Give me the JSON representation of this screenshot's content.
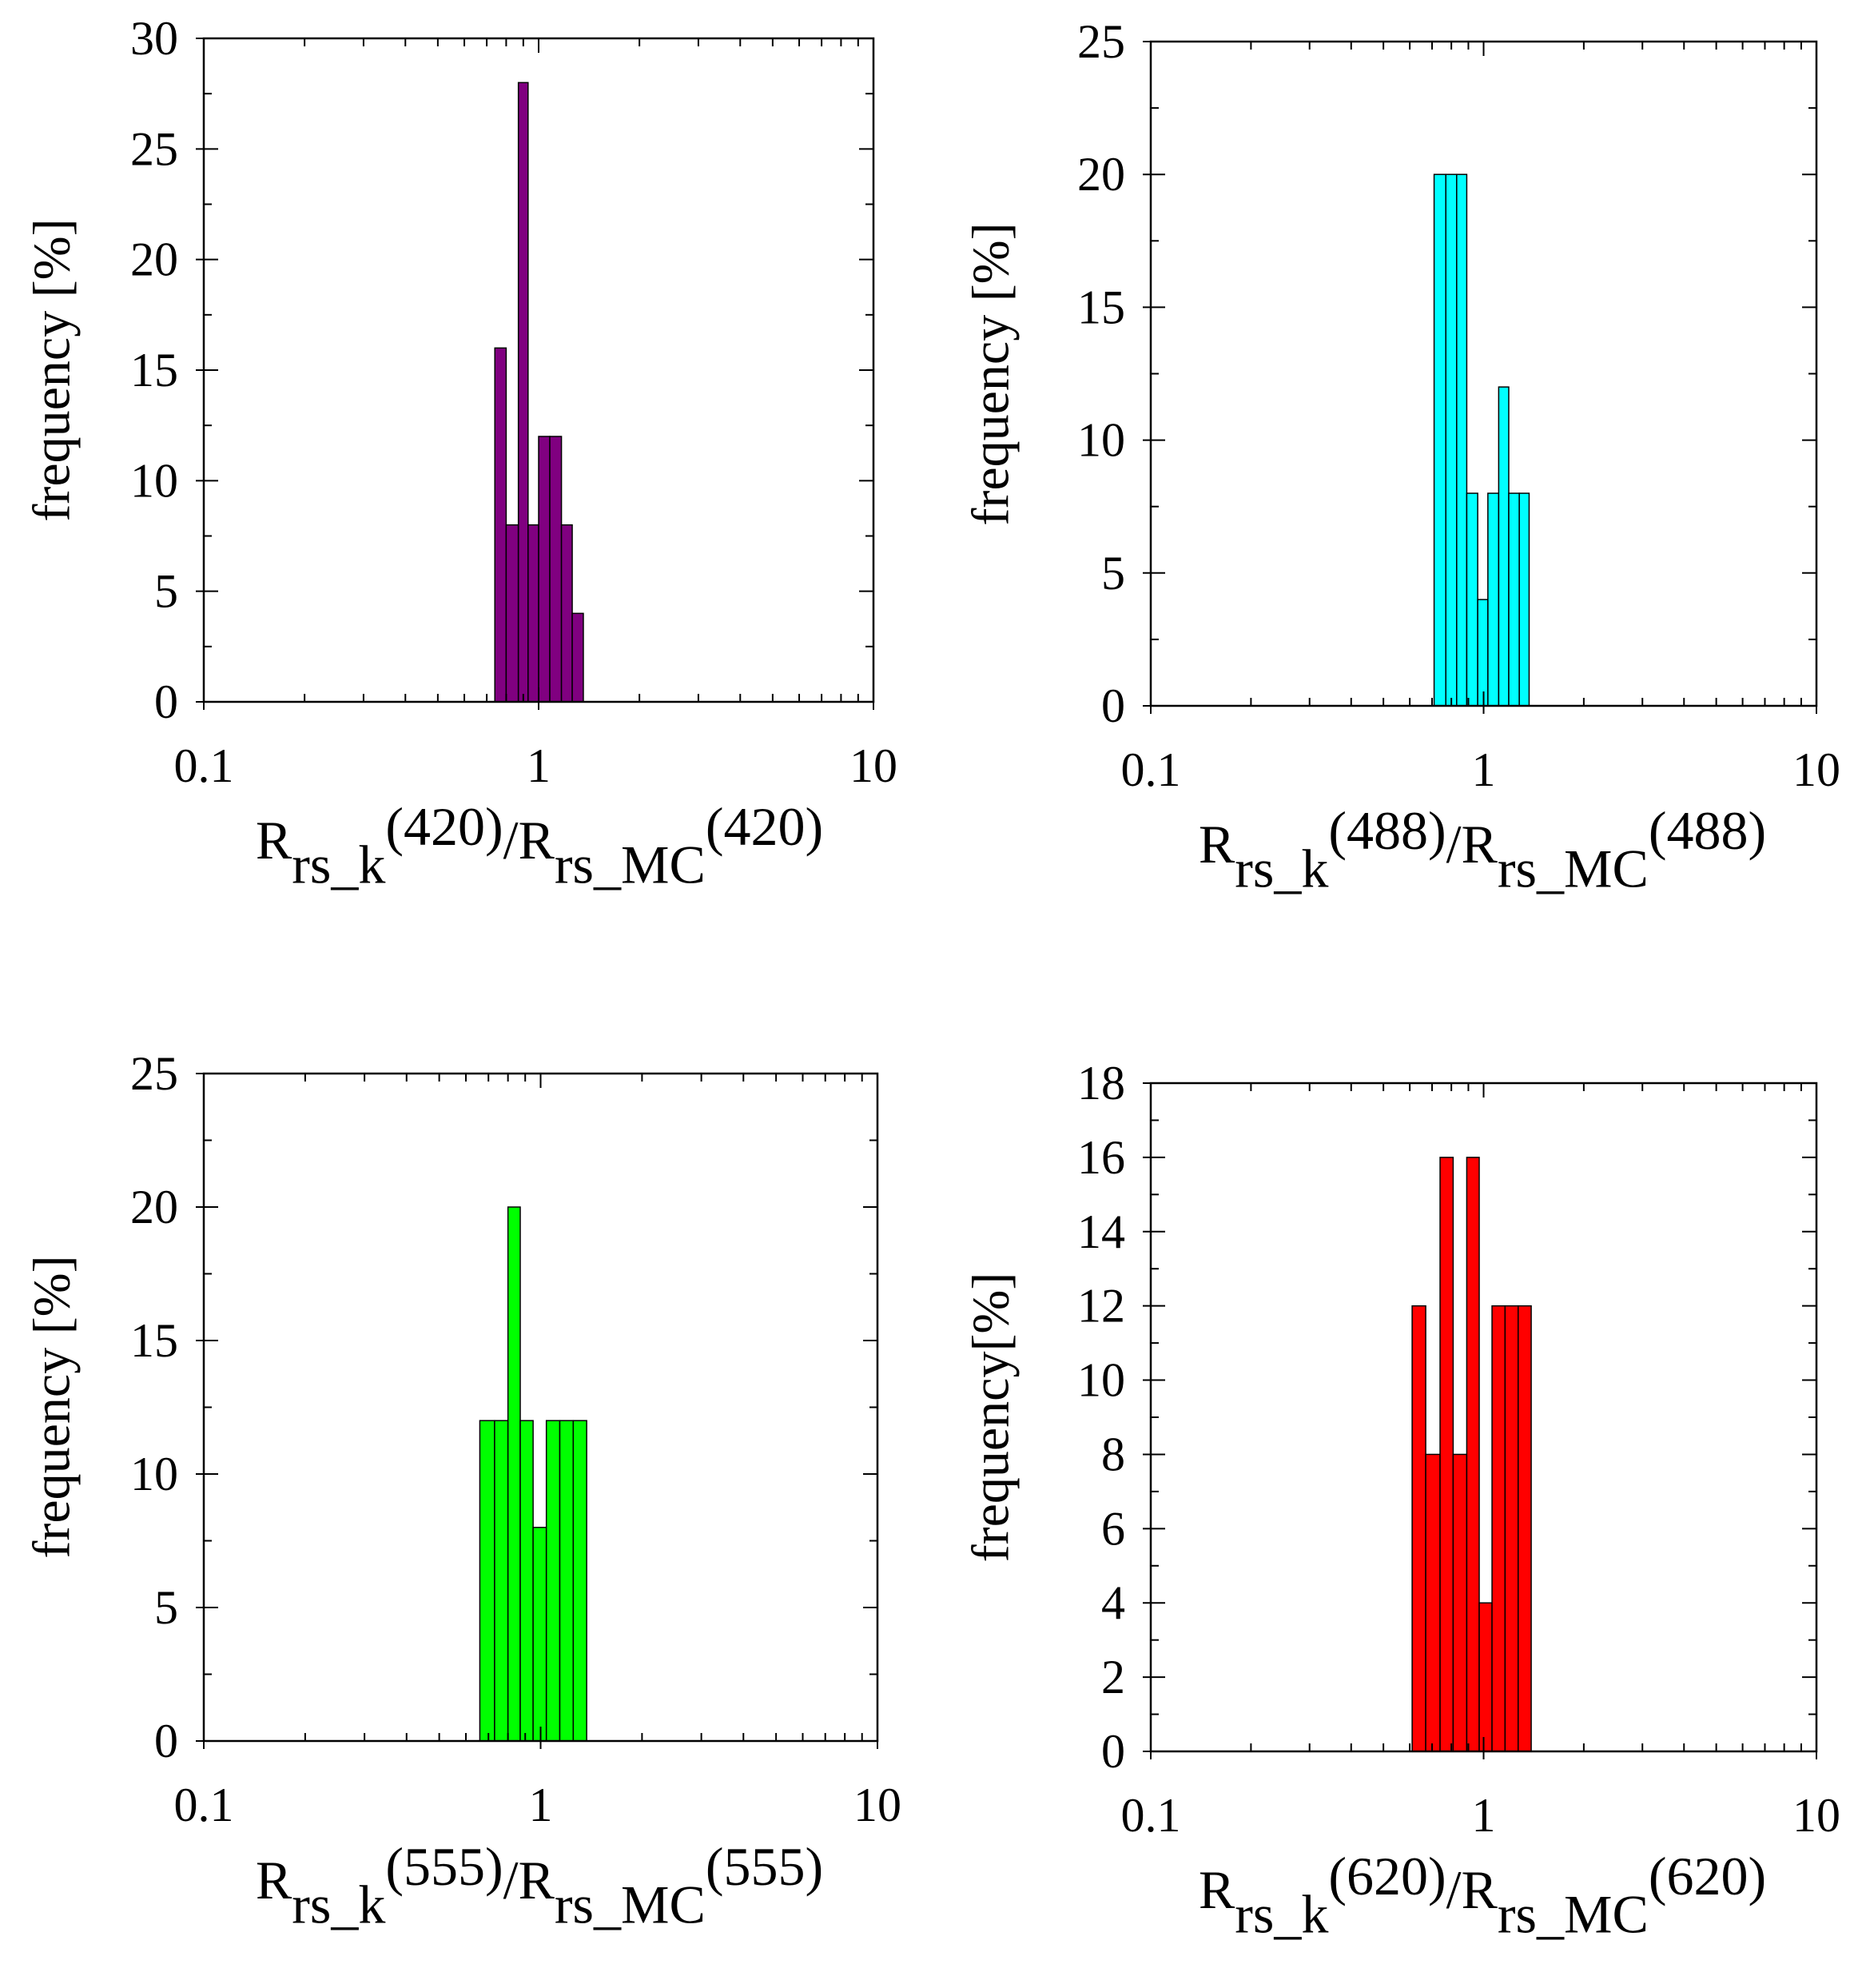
{
  "charts": [
    {
      "xlabel": {
        "prefix": "R",
        "sub1": "rs_k",
        "wl1": "(420)",
        "slash": "/R",
        "sub2": "rs_MC",
        "wl2": "(420)"
      },
      "ylabel": "frequency [%]"
    },
    {
      "xlabel": {
        "prefix": "R",
        "sub1": "rs_k",
        "wl1": "(488)",
        "slash": "/R",
        "sub2": "rs_MC",
        "wl2": "(488)"
      },
      "ylabel": "frequency [%]"
    },
    {
      "xlabel": {
        "prefix": "R",
        "sub1": "rs_k",
        "wl1": "(555)",
        "slash": "/R",
        "sub2": "rs_MC",
        "wl2": "(555)"
      },
      "ylabel": "frequency [%]"
    },
    {
      "xlabel": {
        "prefix": "R",
        "sub1": "rs_k",
        "wl1": "(620)",
        "slash": "/R",
        "sub2": "rs_MC",
        "wl2": "(620)"
      },
      "ylabel": "frequency[%]"
    }
  ],
  "chart_data": [
    {
      "type": "bar",
      "title": "",
      "xlabel": "Rrs_k(420)/Rrs_MC(420)",
      "ylabel": "frequency [%]",
      "xscale": "log",
      "xlim": [
        0.1,
        10
      ],
      "ylim": [
        0,
        30
      ],
      "x_ticks": [
        "0.1",
        "1",
        "10"
      ],
      "y_ticks": [
        "0",
        "5",
        "10",
        "15",
        "20",
        "25",
        "30"
      ],
      "bin_edges": [
        0.74,
        0.8,
        0.87,
        0.93,
        1.0,
        1.08,
        1.17,
        1.26,
        1.36
      ],
      "values": [
        16,
        8,
        28,
        8,
        12,
        12,
        8,
        4
      ],
      "color": "#800080"
    },
    {
      "type": "bar",
      "title": "",
      "xlabel": "Rrs_k(488)/Rrs_MC(488)",
      "ylabel": "frequency [%]",
      "xscale": "log",
      "xlim": [
        0.1,
        10
      ],
      "ylim": [
        0,
        25
      ],
      "x_ticks": [
        "0.1",
        "1",
        "10"
      ],
      "y_ticks": [
        "0",
        "5",
        "10",
        "15",
        "20",
        "25"
      ],
      "bin_edges": [
        0.71,
        0.77,
        0.83,
        0.89,
        0.96,
        1.03,
        1.11,
        1.19,
        1.28,
        1.37
      ],
      "values": [
        20,
        20,
        20,
        8,
        4,
        8,
        12,
        8,
        8
      ],
      "color": "#00ffff"
    },
    {
      "type": "bar",
      "title": "",
      "xlabel": "Rrs_k(555)/Rrs_MC(555)",
      "ylabel": "frequency [%]",
      "xscale": "log",
      "xlim": [
        0.1,
        10
      ],
      "ylim": [
        0,
        25
      ],
      "x_ticks": [
        "0.1",
        "1",
        "10"
      ],
      "y_ticks": [
        "0",
        "5",
        "10",
        "15",
        "20",
        "25"
      ],
      "bin_edges": [
        0.66,
        0.73,
        0.8,
        0.87,
        0.95,
        1.04,
        1.14,
        1.25,
        1.37
      ],
      "values": [
        12,
        12,
        20,
        12,
        8,
        12,
        12,
        12
      ],
      "color": "#00ff00"
    },
    {
      "type": "bar",
      "title": "",
      "xlabel": "Rrs_k(620)/Rrs_MC(620)",
      "ylabel": "frequency[%]",
      "xscale": "log",
      "xlim": [
        0.1,
        10
      ],
      "ylim": [
        0,
        18
      ],
      "x_ticks": [
        "0.1",
        "1",
        "10"
      ],
      "y_ticks": [
        "0",
        "2",
        "4",
        "6",
        "8",
        "10",
        "12",
        "14",
        "16",
        "18"
      ],
      "bin_edges": [
        0.61,
        0.67,
        0.74,
        0.81,
        0.89,
        0.97,
        1.06,
        1.16,
        1.27,
        1.39
      ],
      "values": [
        12,
        8,
        16,
        8,
        16,
        4,
        12,
        12,
        12
      ],
      "color": "#ff0000"
    }
  ]
}
